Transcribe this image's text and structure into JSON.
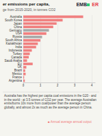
{
  "chart_data": {
    "type": "bar",
    "orientation": "horizontal",
    "title": "er emissions per capita,",
    "subtitle": "ge from 2015-2020, in tonnes CO2",
    "categories": [
      "Australia",
      "South Korea",
      "Japan",
      "China",
      "Germany",
      "USA",
      "Russia",
      "South Africa",
      "Kazakhstan",
      "India",
      "Indonesia",
      "Turkey",
      "Canada",
      "Saudi Arabia",
      "EU",
      "UK",
      "Brazil",
      "Mexico",
      "France",
      "Argentina"
    ],
    "values": [
      3.5,
      2.3,
      1.95,
      1.75,
      1.5,
      1.35,
      1.1,
      1.0,
      0.85,
      0.75,
      0.5,
      0.38,
      0.32,
      0.22,
      0.55,
      0.18,
      0.11,
      0.14,
      0.05,
      0.09
    ],
    "colors": [
      "#f08080",
      "#f08080",
      "#f08080",
      "#f08080",
      "#aaaaaa",
      "#f08080",
      "#aaaaaa",
      "#f08080",
      "#f08080",
      "#f08080",
      "#f08080",
      "#f08080",
      "#f08080",
      "#f08080",
      "#f08080",
      "#f08080",
      "#f08080",
      "#f08080",
      "#f08080",
      "#f08080"
    ],
    "xlim": [
      0,
      4.2
    ],
    "xticks": [
      0,
      1,
      2,
      3,
      4
    ],
    "grid": true,
    "annotations": [
      "EMB",
      "ER",
      "Australia has the highest per capita coal emissions in the G20 - and in the world - at 3.5 tonnes of CO2 per year. The average Australian emits/burns 10x more from coal/power than the average person globally, and almost 2x as much as the average person in China.",
      "■ Annual average annual output"
    ]
  }
}
